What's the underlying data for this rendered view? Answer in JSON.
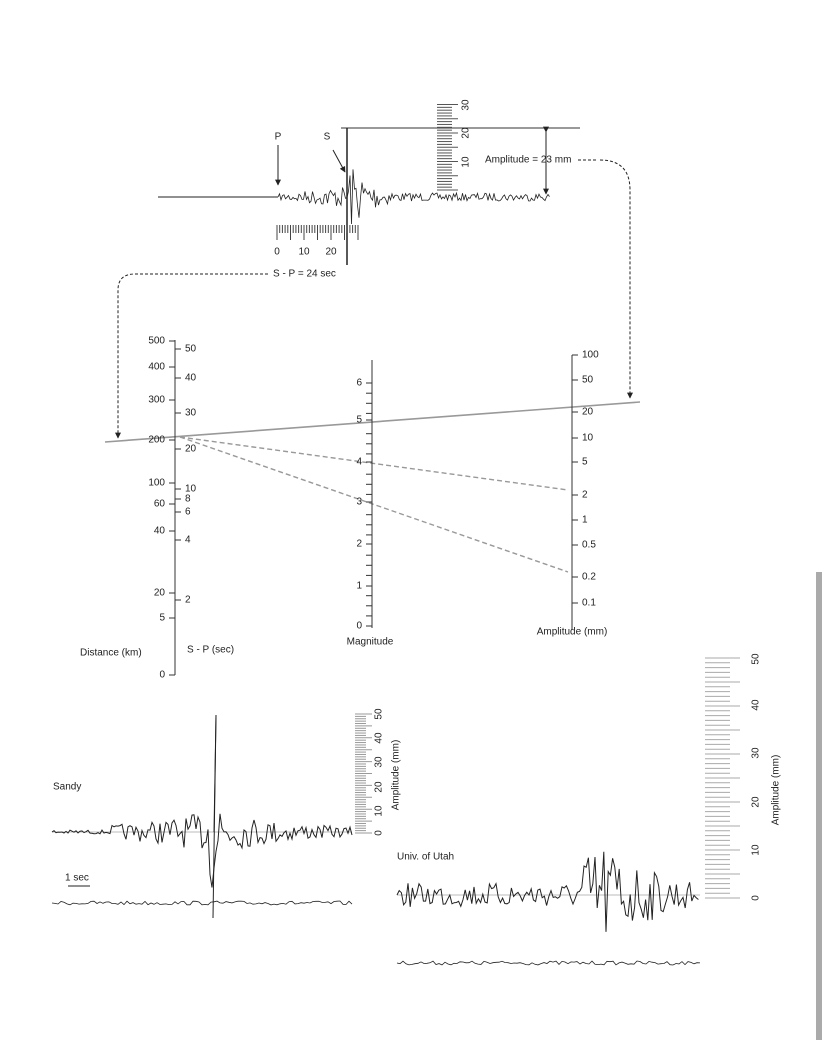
{
  "seismogram": {
    "p_label": "P",
    "s_label": "S",
    "amplitude_label": "Amplitude = 23 mm",
    "sp_label": "S - P = 24 sec",
    "time_ticks": [
      "0",
      "10",
      "20"
    ],
    "amplitude_ticks": [
      "10",
      "20",
      "30"
    ]
  },
  "nomogram": {
    "distance_title": "Distance (km)",
    "distance_labels": [
      "500",
      "400",
      "300",
      "200",
      "100",
      "60",
      "40",
      "20",
      "5",
      "0"
    ],
    "sp_title": "S - P (sec)",
    "sp_labels": [
      "50",
      "40",
      "30",
      "20",
      "10",
      "8",
      "6",
      "4",
      "2"
    ],
    "magnitude_title": "Magnitude",
    "magnitude_labels": [
      "6",
      "5",
      "4",
      "3",
      "2",
      "1",
      "0"
    ],
    "amplitude_title": "Amplitude (mm)",
    "amplitude_labels": [
      "100",
      "50",
      "20",
      "10",
      "5",
      "2",
      "1",
      "0.5",
      "0.2",
      "0.1"
    ]
  },
  "sandy": {
    "name": "Sandy",
    "time_scale": "1 sec",
    "axis_title": "Amplitude (mm)",
    "ticks": [
      "0",
      "10",
      "20",
      "30",
      "40",
      "50"
    ]
  },
  "utah": {
    "name": "Univ. of Utah",
    "axis_title": "Amplitude (mm)",
    "ticks": [
      "0",
      "10",
      "20",
      "30",
      "40",
      "50"
    ]
  }
}
